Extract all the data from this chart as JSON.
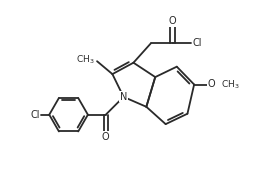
{
  "bg_color": "#ffffff",
  "line_color": "#2a2a2a",
  "line_width": 1.3,
  "font_size_label": 7.0,
  "xlim": [
    0,
    10
  ],
  "ylim": [
    0,
    6.6
  ]
}
